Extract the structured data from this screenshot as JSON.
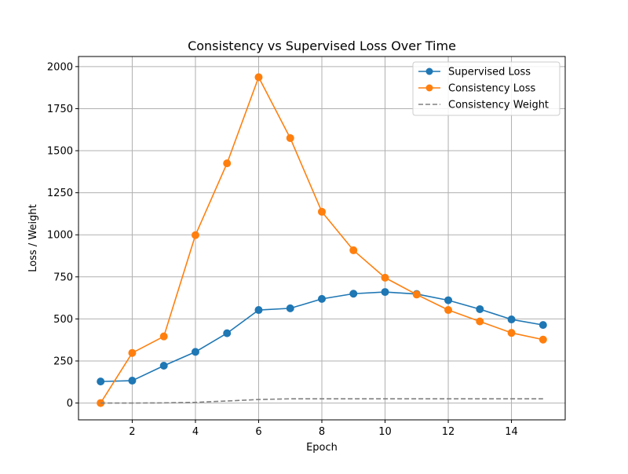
{
  "chart_data": {
    "type": "line",
    "title": "Consistency vs Supervised Loss Over Time",
    "xlabel": "Epoch",
    "ylabel": "Loss / Weight",
    "x": [
      1,
      2,
      3,
      4,
      5,
      6,
      7,
      8,
      9,
      10,
      11,
      12,
      13,
      14,
      15
    ],
    "xlim": [
      0.3,
      15.7
    ],
    "ylim": [
      -100,
      2060
    ],
    "xticks": [
      2,
      4,
      6,
      8,
      10,
      12,
      14
    ],
    "yticks": [
      0,
      250,
      500,
      750,
      1000,
      1250,
      1500,
      1750,
      2000
    ],
    "grid": true,
    "legend_position": "top-right",
    "series": [
      {
        "name": "Supervised Loss",
        "color": "#1f77b4",
        "style": "solid",
        "marker": "circle",
        "values": [
          128,
          133,
          222,
          304,
          415,
          553,
          563,
          619,
          650,
          660,
          648,
          611,
          558,
          497,
          464
        ]
      },
      {
        "name": "Consistency Loss",
        "color": "#ff7f0e",
        "style": "solid",
        "marker": "circle",
        "values": [
          0,
          298,
          396,
          998,
          1425,
          1937,
          1575,
          1137,
          908,
          745,
          645,
          553,
          485,
          417,
          377
        ]
      },
      {
        "name": "Consistency Weight",
        "color": "#808080",
        "style": "dashed",
        "marker": "none",
        "values": [
          0,
          0,
          1,
          4,
          12,
          21,
          25,
          25,
          25,
          25,
          25,
          25,
          25,
          25,
          25
        ]
      }
    ]
  }
}
